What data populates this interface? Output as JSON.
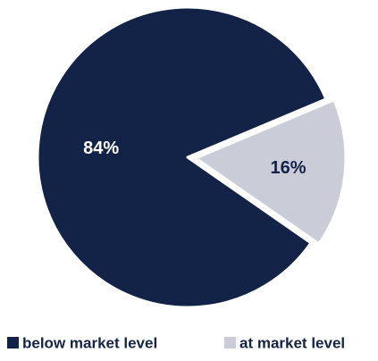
{
  "chart_data": {
    "type": "pie",
    "categories": [
      "below market level",
      "at market level"
    ],
    "values": [
      84,
      16
    ],
    "data_labels": [
      "84%",
      "16%"
    ],
    "colors": [
      "#132347",
      "#cacdd8"
    ],
    "label_colors": [
      "#ffffff",
      "#132347"
    ],
    "legend_position": "bottom",
    "exploded": [
      false,
      true
    ]
  }
}
